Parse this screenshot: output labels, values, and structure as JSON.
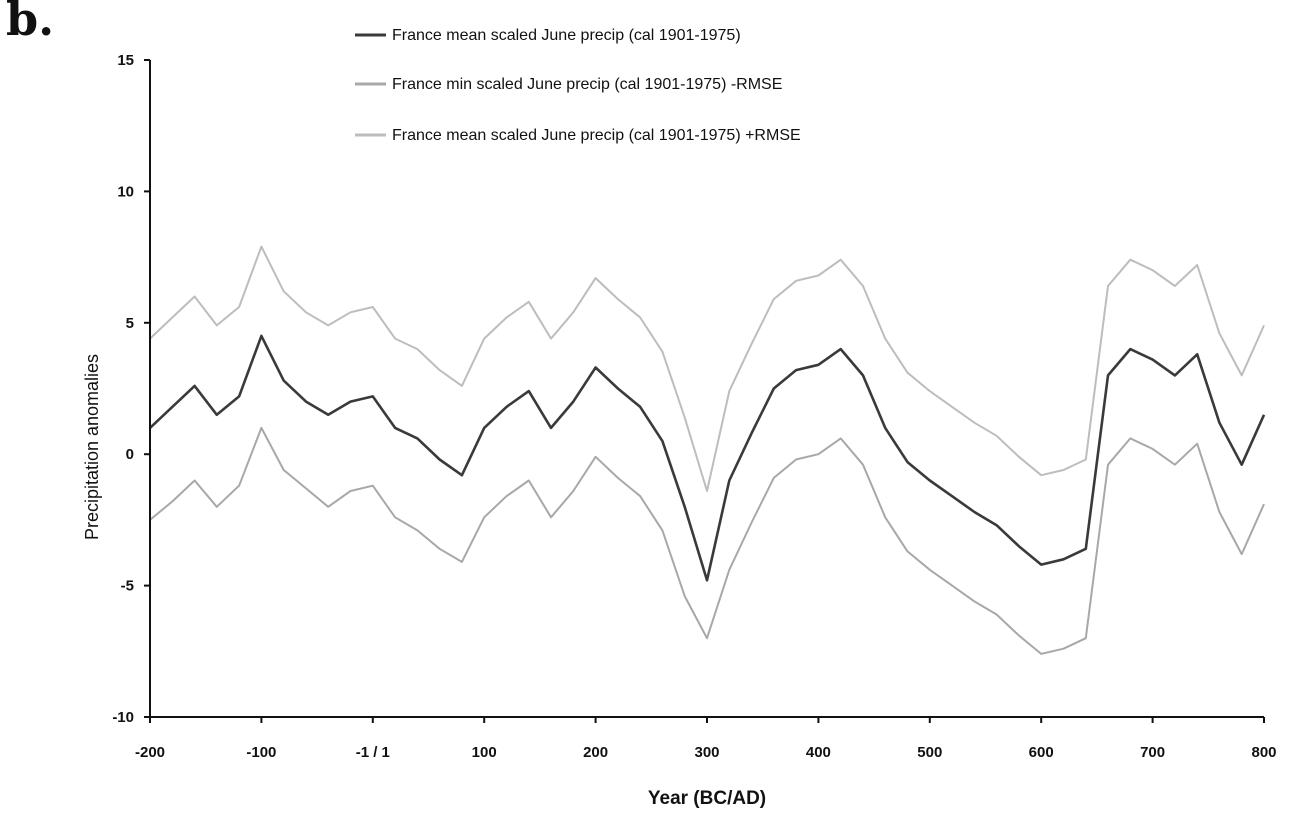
{
  "panel_label": "b.",
  "chart_data": {
    "type": "line",
    "title": "",
    "xlabel": "Year (BC/AD)",
    "ylabel": "Precipitation anomalies",
    "xlim": [
      -200,
      800
    ],
    "ylim": [
      -10,
      15
    ],
    "x_ticks": [
      {
        "value": -200,
        "label": "-200"
      },
      {
        "value": -100,
        "label": "-100"
      },
      {
        "value": 0,
        "label": "-1 / 1"
      },
      {
        "value": 100,
        "label": "100"
      },
      {
        "value": 200,
        "label": "200"
      },
      {
        "value": 300,
        "label": "300"
      },
      {
        "value": 400,
        "label": "400"
      },
      {
        "value": 500,
        "label": "500"
      },
      {
        "value": 600,
        "label": "600"
      },
      {
        "value": 700,
        "label": "700"
      },
      {
        "value": 800,
        "label": "800"
      }
    ],
    "y_ticks": [
      {
        "value": 15,
        "label": "15"
      },
      {
        "value": 10,
        "label": "10"
      },
      {
        "value": 5,
        "label": "5"
      },
      {
        "value": 0,
        "label": "0"
      },
      {
        "value": -5,
        "label": "-5"
      },
      {
        "value": -10,
        "label": "-10"
      }
    ],
    "grid": false,
    "legend_position": "top-center",
    "series": [
      {
        "name": "France mean scaled June precip (cal 1901-1975)",
        "color": "#3a3a3a",
        "x": [
          -200,
          -180,
          -160,
          -140,
          -120,
          -100,
          -80,
          -60,
          -40,
          -20,
          0,
          20,
          40,
          60,
          80,
          100,
          120,
          140,
          160,
          180,
          200,
          220,
          240,
          260,
          280,
          300,
          320,
          340,
          360,
          380,
          400,
          420,
          440,
          460,
          480,
          500,
          520,
          540,
          560,
          580,
          600,
          620,
          640,
          660,
          680,
          700,
          720,
          740,
          760,
          780,
          800
        ],
        "y": [
          1.0,
          1.8,
          2.6,
          1.5,
          2.2,
          4.5,
          2.8,
          2.0,
          1.5,
          2.0,
          2.2,
          1.0,
          0.6,
          -0.2,
          -0.8,
          1.0,
          1.8,
          2.4,
          1.0,
          2.0,
          3.3,
          2.5,
          1.8,
          0.5,
          -2.0,
          -4.8,
          -1.0,
          0.8,
          2.5,
          3.2,
          3.4,
          4.0,
          3.0,
          1.0,
          -0.3,
          -1.0,
          -1.6,
          -2.2,
          -2.7,
          -3.5,
          -4.2,
          -4.0,
          -3.6,
          3.0,
          4.0,
          3.6,
          3.0,
          3.8,
          1.2,
          -0.4,
          1.5
        ]
      },
      {
        "name": "France min scaled June precip (cal 1901-1975) -RMSE",
        "color": "#a8a8a8",
        "x": [
          -200,
          -180,
          -160,
          -140,
          -120,
          -100,
          -80,
          -60,
          -40,
          -20,
          0,
          20,
          40,
          60,
          80,
          100,
          120,
          140,
          160,
          180,
          200,
          220,
          240,
          260,
          280,
          300,
          320,
          340,
          360,
          380,
          400,
          420,
          440,
          460,
          480,
          500,
          520,
          540,
          560,
          580,
          600,
          620,
          640,
          660,
          680,
          700,
          720,
          740,
          760,
          780,
          800
        ],
        "y": [
          -2.5,
          -1.8,
          -1.0,
          -2.0,
          -1.2,
          1.0,
          -0.6,
          -1.3,
          -2.0,
          -1.4,
          -1.2,
          -2.4,
          -2.9,
          -3.6,
          -4.1,
          -2.4,
          -1.6,
          -1.0,
          -2.4,
          -1.4,
          -0.1,
          -0.9,
          -1.6,
          -2.9,
          -5.4,
          -7.0,
          -4.4,
          -2.6,
          -0.9,
          -0.2,
          0.0,
          0.6,
          -0.4,
          -2.4,
          -3.7,
          -4.4,
          -5.0,
          -5.6,
          -6.1,
          -6.9,
          -7.6,
          -7.4,
          -7.0,
          -0.4,
          0.6,
          0.2,
          -0.4,
          0.4,
          -2.2,
          -3.8,
          -1.9
        ]
      },
      {
        "name": "France mean scaled June precip (cal 1901-1975) +RMSE",
        "color": "#bdbdbd",
        "x": [
          -200,
          -180,
          -160,
          -140,
          -120,
          -100,
          -80,
          -60,
          -40,
          -20,
          0,
          20,
          40,
          60,
          80,
          100,
          120,
          140,
          160,
          180,
          200,
          220,
          240,
          260,
          280,
          300,
          320,
          340,
          360,
          380,
          400,
          420,
          440,
          460,
          480,
          500,
          520,
          540,
          560,
          580,
          600,
          620,
          640,
          660,
          680,
          700,
          720,
          740,
          760,
          780,
          800
        ],
        "y": [
          4.4,
          5.2,
          6.0,
          4.9,
          5.6,
          7.9,
          6.2,
          5.4,
          4.9,
          5.4,
          5.6,
          4.4,
          4.0,
          3.2,
          2.6,
          4.4,
          5.2,
          5.8,
          4.4,
          5.4,
          6.7,
          5.9,
          5.2,
          3.9,
          1.4,
          -1.4,
          2.4,
          4.2,
          5.9,
          6.6,
          6.8,
          7.4,
          6.4,
          4.4,
          3.1,
          2.4,
          1.8,
          1.2,
          0.7,
          -0.1,
          -0.8,
          -0.6,
          -0.2,
          6.4,
          7.4,
          7.0,
          6.4,
          7.2,
          4.6,
          3.0,
          4.9
        ]
      }
    ]
  }
}
